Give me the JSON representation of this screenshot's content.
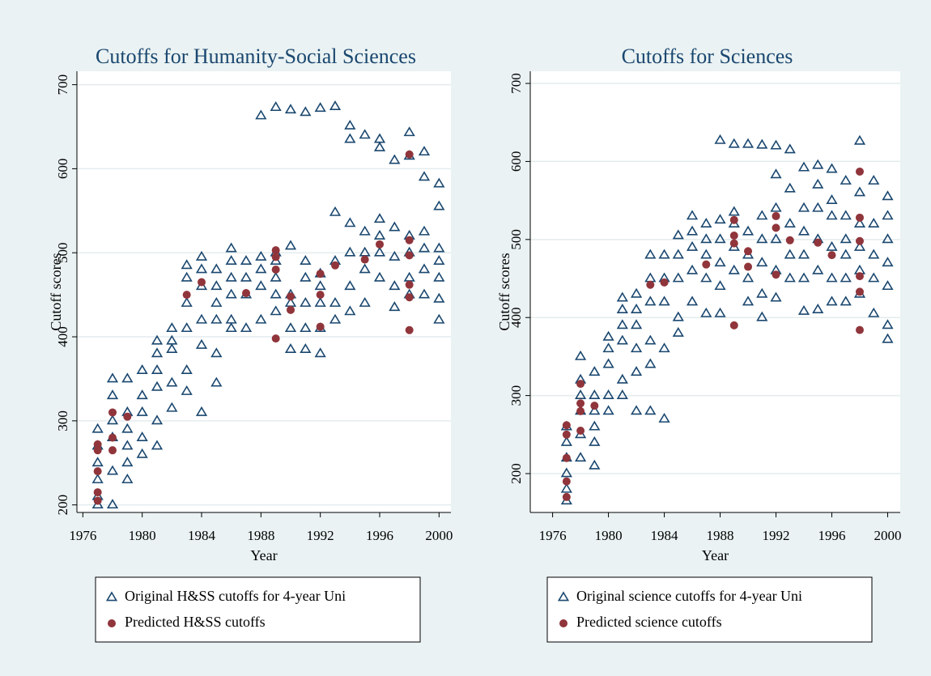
{
  "chart_data": [
    {
      "type": "scatter",
      "title": "Cutoffs for Humanity-Social Sciences",
      "xlabel": "Year",
      "ylabel": "Cutoff scores",
      "xlim": [
        1975.6,
        2000.8
      ],
      "ylim": [
        191,
        716
      ],
      "xticks": [
        1976,
        1980,
        1984,
        1988,
        1992,
        1996,
        2000
      ],
      "yticks": [
        200,
        300,
        400,
        500,
        600,
        700
      ],
      "grid": true,
      "legend": "bottom",
      "series": [
        {
          "name": "Original H&SS cutoffs for 4-year Uni",
          "color": "#1a476f",
          "marker": "triangle",
          "x": [
            1977,
            1977,
            1977,
            1977,
            1977,
            1977,
            1978,
            1978,
            1978,
            1978,
            1978,
            1978,
            1979,
            1979,
            1979,
            1979,
            1979,
            1979,
            1980,
            1980,
            1980,
            1980,
            1980,
            1981,
            1981,
            1981,
            1981,
            1981,
            1981,
            1982,
            1982,
            1982,
            1982,
            1982,
            1983,
            1983,
            1983,
            1983,
            1983,
            1983,
            1984,
            1984,
            1984,
            1984,
            1984,
            1984,
            1985,
            1985,
            1985,
            1985,
            1985,
            1985,
            1986,
            1986,
            1986,
            1986,
            1986,
            1986,
            1987,
            1987,
            1987,
            1987,
            1988,
            1988,
            1988,
            1988,
            1988,
            1989,
            1989,
            1989,
            1989,
            1989,
            1989,
            1990,
            1990,
            1990,
            1990,
            1990,
            1990,
            1991,
            1991,
            1991,
            1991,
            1991,
            1991,
            1992,
            1992,
            1992,
            1992,
            1992,
            1992,
            1993,
            1993,
            1993,
            1993,
            1993,
            1994,
            1994,
            1994,
            1994,
            1994,
            1994,
            1995,
            1995,
            1995,
            1995,
            1995,
            1996,
            1996,
            1996,
            1996,
            1996,
            1996,
            1997,
            1997,
            1997,
            1997,
            1997,
            1998,
            1998,
            1998,
            1998,
            1998,
            1998,
            1999,
            1999,
            1999,
            1999,
            1999,
            1999,
            2000,
            2000,
            2000,
            2000,
            2000,
            2000,
            2000
          ],
          "values": [
            200,
            210,
            230,
            250,
            270,
            290,
            200,
            240,
            280,
            300,
            330,
            350,
            230,
            250,
            270,
            290,
            310,
            350,
            260,
            280,
            310,
            330,
            360,
            270,
            300,
            340,
            360,
            380,
            395,
            315,
            345,
            385,
            395,
            410,
            335,
            360,
            410,
            440,
            470,
            485,
            310,
            390,
            420,
            460,
            480,
            495,
            345,
            380,
            420,
            440,
            460,
            480,
            410,
            420,
            450,
            470,
            490,
            505,
            410,
            450,
            470,
            490,
            420,
            460,
            480,
            495,
            663,
            430,
            450,
            470,
            490,
            500,
            673,
            385,
            410,
            440,
            450,
            508,
            670,
            385,
            410,
            440,
            470,
            490,
            667,
            380,
            410,
            440,
            460,
            475,
            672,
            420,
            440,
            490,
            548,
            674,
            430,
            460,
            500,
            535,
            635,
            651,
            440,
            480,
            500,
            525,
            640,
            470,
            500,
            520,
            540,
            625,
            635,
            435,
            460,
            495,
            530,
            610,
            450,
            470,
            500,
            520,
            615,
            643,
            450,
            480,
            505,
            525,
            590,
            620,
            420,
            445,
            470,
            490,
            505,
            555,
            582
          ]
        },
        {
          "name": "Predicted H&SS cutoffs",
          "color": "#90353b",
          "marker": "circle",
          "x": [
            1977,
            1977,
            1977,
            1977,
            1977,
            1978,
            1978,
            1978,
            1979,
            1983,
            1984,
            1987,
            1989,
            1989,
            1989,
            1989,
            1990,
            1990,
            1992,
            1992,
            1992,
            1993,
            1995,
            1996,
            1998,
            1998,
            1998,
            1998,
            1998,
            1998
          ],
          "values": [
            205,
            215,
            240,
            265,
            272,
            265,
            280,
            310,
            305,
            450,
            465,
            452,
            398,
            480,
            495,
            503,
            432,
            448,
            412,
            450,
            475,
            485,
            492,
            510,
            408,
            447,
            462,
            497,
            515,
            617
          ]
        }
      ]
    },
    {
      "type": "scatter",
      "title": "Cutoffs for Sciences",
      "xlabel": "Year",
      "ylabel": "Cutoff scores",
      "xlim": [
        1974.4,
        2000.9
      ],
      "ylim": [
        150.2,
        715.6
      ],
      "xticks": [
        1976,
        1980,
        1984,
        1988,
        1992,
        1996,
        2000
      ],
      "yticks": [
        200,
        300,
        400,
        500,
        600,
        700
      ],
      "grid": true,
      "legend": "bottom",
      "series": [
        {
          "name": "Original science cutoffs for 4-year Uni",
          "color": "#1a476f",
          "marker": "triangle",
          "x": [
            1977,
            1977,
            1977,
            1977,
            1977,
            1977,
            1978,
            1978,
            1978,
            1978,
            1978,
            1978,
            1979,
            1979,
            1979,
            1979,
            1979,
            1979,
            1980,
            1980,
            1980,
            1980,
            1980,
            1981,
            1981,
            1981,
            1981,
            1981,
            1981,
            1982,
            1982,
            1982,
            1982,
            1982,
            1982,
            1983,
            1983,
            1983,
            1983,
            1983,
            1983,
            1984,
            1984,
            1984,
            1984,
            1984,
            1985,
            1985,
            1985,
            1985,
            1985,
            1986,
            1986,
            1986,
            1986,
            1986,
            1987,
            1987,
            1987,
            1987,
            1987,
            1988,
            1988,
            1988,
            1988,
            1988,
            1988,
            1989,
            1989,
            1989,
            1989,
            1989,
            1990,
            1990,
            1990,
            1990,
            1990,
            1991,
            1991,
            1991,
            1991,
            1991,
            1991,
            1992,
            1992,
            1992,
            1992,
            1992,
            1992,
            1993,
            1993,
            1993,
            1993,
            1993,
            1994,
            1994,
            1994,
            1994,
            1994,
            1994,
            1995,
            1995,
            1995,
            1995,
            1995,
            1995,
            1996,
            1996,
            1996,
            1996,
            1996,
            1996,
            1997,
            1997,
            1997,
            1997,
            1997,
            1997,
            1998,
            1998,
            1998,
            1998,
            1998,
            1998,
            1999,
            1999,
            1999,
            1999,
            1999,
            2000,
            2000,
            2000,
            2000,
            2000,
            2000,
            2000
          ],
          "values": [
            165,
            180,
            200,
            220,
            240,
            260,
            220,
            250,
            280,
            300,
            320,
            350,
            210,
            240,
            260,
            280,
            300,
            330,
            280,
            300,
            340,
            360,
            375,
            300,
            320,
            370,
            390,
            410,
            425,
            280,
            330,
            360,
            390,
            410,
            430,
            280,
            340,
            370,
            420,
            450,
            480,
            270,
            360,
            420,
            450,
            480,
            380,
            400,
            450,
            480,
            505,
            420,
            460,
            490,
            510,
            530,
            405,
            450,
            480,
            500,
            520,
            405,
            440,
            470,
            500,
            525,
            627,
            460,
            490,
            520,
            535,
            622,
            420,
            450,
            480,
            510,
            622,
            400,
            430,
            470,
            500,
            530,
            621,
            425,
            460,
            500,
            540,
            583,
            620,
            450,
            480,
            520,
            565,
            615,
            408,
            450,
            480,
            510,
            540,
            592,
            410,
            460,
            500,
            540,
            570,
            595,
            420,
            450,
            490,
            530,
            550,
            590,
            420,
            450,
            480,
            500,
            530,
            575,
            430,
            460,
            490,
            520,
            560,
            626,
            405,
            450,
            480,
            520,
            575,
            372,
            390,
            440,
            470,
            500,
            530,
            555
          ]
        },
        {
          "name": "Predicted science cutoffs",
          "color": "#90353b",
          "marker": "circle",
          "x": [
            1977,
            1977,
            1977,
            1977,
            1977,
            1978,
            1978,
            1978,
            1978,
            1979,
            1983,
            1984,
            1987,
            1989,
            1989,
            1989,
            1989,
            1990,
            1990,
            1992,
            1992,
            1992,
            1993,
            1995,
            1996,
            1998,
            1998,
            1998,
            1998,
            1998,
            1998
          ],
          "values": [
            170,
            190,
            220,
            250,
            262,
            255,
            280,
            290,
            315,
            287,
            442,
            445,
            468,
            390,
            495,
            505,
            525,
            465,
            485,
            455,
            515,
            530,
            499,
            496,
            480,
            384,
            433,
            453,
            498,
            528,
            587
          ]
        }
      ]
    }
  ]
}
